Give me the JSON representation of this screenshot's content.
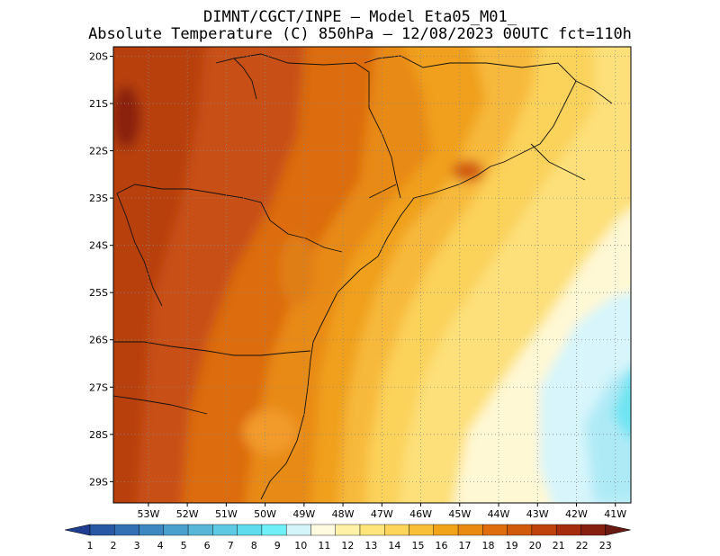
{
  "title": {
    "line1": "DIMNT/CGCT/INPE –  Model Eta05_M01_",
    "line2": "Absolute Temperature (C) 850hPa –  12/08/2023 00UTC fct=110h"
  },
  "map": {
    "lon_range": [
      -53.9,
      -40.6
    ],
    "lat_range": [
      -29.45,
      -19.8
    ],
    "lat_ticks": [
      "20S",
      "21S",
      "22S",
      "23S",
      "24S",
      "25S",
      "26S",
      "27S",
      "28S",
      "29S"
    ],
    "lat_values": [
      -20,
      -21,
      -22,
      -23,
      -24,
      -25,
      -26,
      -27,
      -28,
      -29
    ],
    "lon_ticks": [
      "53W",
      "52W",
      "51W",
      "50W",
      "49W",
      "48W",
      "47W",
      "46W",
      "45W",
      "44W",
      "43W",
      "42W",
      "41W"
    ],
    "lon_values": [
      -53,
      -52,
      -51,
      -50,
      -49,
      -48,
      -47,
      -46,
      -45,
      -44,
      -43,
      -42,
      -41
    ],
    "grid": true,
    "grid_style": "dotted"
  },
  "colorbar": {
    "labels": [
      "1",
      "2",
      "3",
      "4",
      "5",
      "6",
      "7",
      "8",
      "9",
      "10",
      "11",
      "12",
      "13",
      "14",
      "15",
      "16",
      "17",
      "18",
      "19",
      "20",
      "21",
      "22",
      "23"
    ],
    "colors": [
      "#1f3e8f",
      "#2857a3",
      "#3270b3",
      "#3d88c0",
      "#4aa0cc",
      "#58b6d8",
      "#5ec9e3",
      "#60dcef",
      "#6ff0f8",
      "#d4f6fb",
      "#fffbe0",
      "#fff2a6",
      "#ffe57a",
      "#fdd55a",
      "#f9bf36",
      "#f2a418",
      "#ea8a10",
      "#df6d0c",
      "#d05a0a",
      "#bf420c",
      "#a52c0d",
      "#86200e",
      "#6a1a12"
    ],
    "arrows": true
  }
}
